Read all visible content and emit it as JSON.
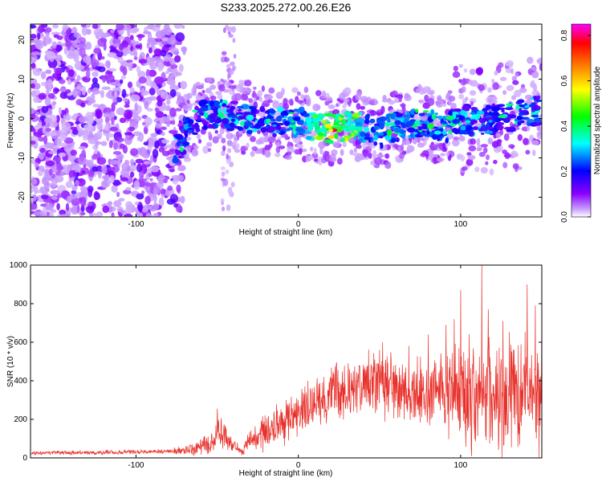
{
  "chart_data": [
    {
      "type": "heatmap",
      "title": "S233.2025.272.00.26.E26",
      "xlabel": "Height of straight line (km)",
      "ylabel": "Frequency (Hz)",
      "xlim": [
        -165,
        150
      ],
      "ylim": [
        -25,
        24
      ],
      "xticks": [
        -100,
        0,
        100
      ],
      "yticks": [
        -20,
        -10,
        0,
        10,
        20
      ],
      "colorbar": {
        "label": "Normalized spectral amplitude",
        "range": [
          0.0,
          0.85
        ],
        "ticks": [
          "0.0",
          "0.2",
          "0.4",
          "0.6",
          "0.8"
        ],
        "colors": [
          "#ffffff",
          "#8b00ff",
          "#0000ff",
          "#00ffff",
          "#00ff00",
          "#ffff00",
          "#ff8000",
          "#ff0000",
          "#ff00ff"
        ]
      },
      "features": {
        "noise_region_x": [
          -165,
          -70
        ],
        "gap_region_x": [
          -70,
          -38
        ],
        "ridge_centerline": [
          [
            -75,
            -8
          ],
          [
            -68,
            -3
          ],
          [
            -60,
            1
          ],
          [
            -45,
            1
          ],
          [
            -30,
            0
          ],
          [
            -15,
            -1
          ],
          [
            0,
            -1
          ],
          [
            10,
            -2
          ],
          [
            20,
            -2.5
          ],
          [
            30,
            -2
          ],
          [
            45,
            -2.5
          ],
          [
            50,
            -4
          ],
          [
            60,
            -2
          ],
          [
            75,
            -1
          ],
          [
            85,
            -2
          ],
          [
            90,
            -3
          ],
          [
            100,
            0
          ],
          [
            110,
            -1
          ],
          [
            120,
            0
          ],
          [
            130,
            0
          ],
          [
            140,
            2
          ],
          [
            150,
            2
          ]
        ],
        "peak_amplitude_point": [
          22,
          -3
        ]
      }
    },
    {
      "type": "line",
      "xlabel": "Height of straight line (km)",
      "ylabel": "SNR (10 * v/v)",
      "xlim": [
        -165,
        150
      ],
      "ylim": [
        0,
        1000
      ],
      "xticks": [
        -100,
        0,
        100
      ],
      "yticks": [
        0,
        200,
        400,
        600,
        800,
        1000
      ],
      "line_color": "#e8302a",
      "envelope_mean": [
        [
          -165,
          25
        ],
        [
          -110,
          30
        ],
        [
          -80,
          35
        ],
        [
          -65,
          40
        ],
        [
          -55,
          70
        ],
        [
          -48,
          130
        ],
        [
          -42,
          80
        ],
        [
          -35,
          30
        ],
        [
          -30,
          90
        ],
        [
          -20,
          140
        ],
        [
          -10,
          180
        ],
        [
          0,
          230
        ],
        [
          10,
          290
        ],
        [
          20,
          330
        ],
        [
          30,
          360
        ],
        [
          40,
          380
        ],
        [
          50,
          380
        ],
        [
          60,
          370
        ],
        [
          70,
          360
        ],
        [
          80,
          350
        ],
        [
          90,
          340
        ],
        [
          100,
          330
        ],
        [
          110,
          330
        ],
        [
          120,
          320
        ],
        [
          130,
          320
        ],
        [
          140,
          320
        ],
        [
          150,
          320
        ]
      ],
      "envelope_spread": [
        [
          -165,
          10
        ],
        [
          -80,
          12
        ],
        [
          -55,
          50
        ],
        [
          -48,
          90
        ],
        [
          -42,
          50
        ],
        [
          -35,
          15
        ],
        [
          -30,
          70
        ],
        [
          -10,
          120
        ],
        [
          0,
          140
        ],
        [
          20,
          150
        ],
        [
          40,
          150
        ],
        [
          60,
          170
        ],
        [
          80,
          180
        ],
        [
          95,
          220
        ],
        [
          100,
          250
        ],
        [
          110,
          280
        ],
        [
          130,
          300
        ],
        [
          150,
          300
        ]
      ],
      "notable_peaks": [
        [
          -50,
          255
        ],
        [
          50,
          560
        ],
        [
          52,
          600
        ],
        [
          68,
          580
        ],
        [
          80,
          640
        ],
        [
          91,
          690
        ],
        [
          96,
          720
        ],
        [
          100,
          870
        ],
        [
          113,
          1000
        ],
        [
          117,
          770
        ],
        [
          126,
          710
        ],
        [
          141,
          900
        ],
        [
          146,
          790
        ],
        [
          150,
          760
        ]
      ]
    }
  ]
}
